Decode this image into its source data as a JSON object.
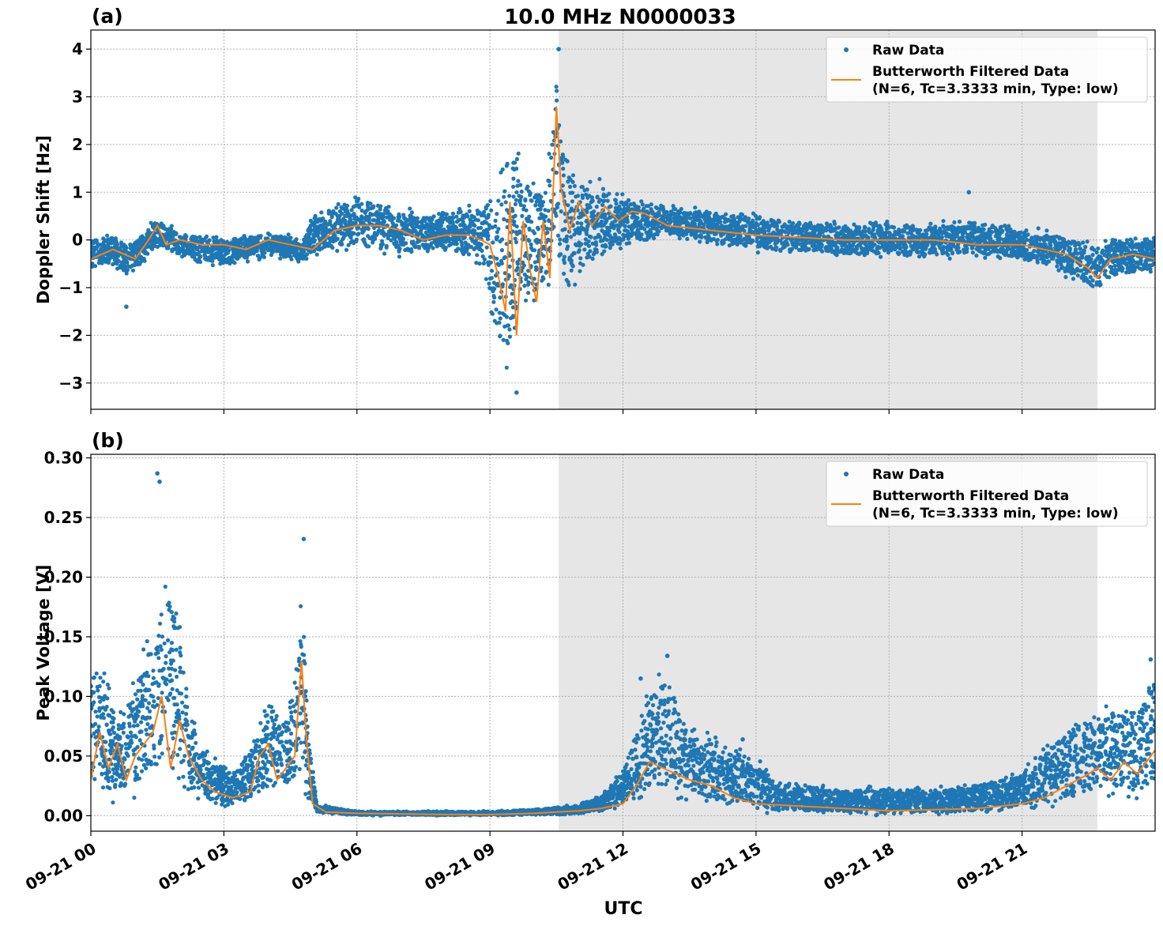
{
  "figure_title": "10.0 MHz N0000033",
  "xlabel": "UTC",
  "colors": {
    "raw": "#1f77b4",
    "filtered": "#ff7f0e",
    "shade": "#e6e6e6",
    "grid": "#b0b0b0"
  },
  "chart_data": [
    {
      "type": "scatter",
      "panel_label": "(a)",
      "ylabel": "Doppler Shift [Hz]",
      "xlim": [
        0,
        24
      ],
      "ylim": [
        -3.55,
        4.4
      ],
      "y_ticks": [
        4,
        3,
        2,
        1,
        0,
        -1,
        -2,
        -3
      ],
      "y_tick_labels": [
        "4",
        "3",
        "2",
        "1",
        "0",
        "−1",
        "−2",
        "−3"
      ],
      "shaded_region_utc_hours": [
        10.55,
        22.7
      ],
      "grid": true,
      "legend_position": "top-right",
      "legend": [
        "Raw Data",
        "Butterworth Filtered Data",
        "(N=6, Tc=3.3333 min, Type: low)"
      ],
      "series": [
        {
          "name": "Raw Data",
          "style": "markers",
          "band": [
            [
              0.0,
              -0.7,
              0.1
            ],
            [
              0.5,
              -0.6,
              0.2
            ],
            [
              0.8,
              -0.8,
              0.0
            ],
            [
              1.0,
              -0.7,
              0.1
            ],
            [
              1.5,
              -0.2,
              0.5
            ],
            [
              2.0,
              -0.4,
              0.2
            ],
            [
              3.0,
              -0.6,
              0.1
            ],
            [
              4.0,
              -0.4,
              0.2
            ],
            [
              4.8,
              -0.5,
              0.1
            ],
            [
              5.0,
              -0.4,
              0.6
            ],
            [
              6.0,
              -0.2,
              1.0
            ],
            [
              7.0,
              -0.4,
              0.7
            ],
            [
              8.0,
              -0.3,
              0.6
            ],
            [
              8.8,
              -0.6,
              0.9
            ],
            [
              9.2,
              -2.9,
              1.5
            ],
            [
              9.4,
              -3.2,
              2.8
            ],
            [
              9.7,
              -1.6,
              2.0
            ],
            [
              10.0,
              -1.7,
              1.4
            ],
            [
              10.3,
              -1.2,
              1.6
            ],
            [
              10.5,
              -0.6,
              4.0
            ],
            [
              10.7,
              -1.3,
              1.9
            ],
            [
              11.0,
              -1.0,
              1.5
            ],
            [
              11.5,
              -0.6,
              1.4
            ],
            [
              12.0,
              -0.2,
              1.0
            ],
            [
              13.0,
              0.0,
              0.8
            ],
            [
              15.0,
              -0.3,
              0.6
            ],
            [
              17.0,
              -0.4,
              0.4
            ],
            [
              19.0,
              -0.4,
              0.4
            ],
            [
              20.0,
              -0.4,
              0.5
            ],
            [
              21.0,
              -0.5,
              0.3
            ],
            [
              22.0,
              -0.8,
              0.2
            ],
            [
              22.7,
              -1.2,
              0.0
            ],
            [
              23.0,
              -0.9,
              0.1
            ],
            [
              24.0,
              -0.7,
              0.1
            ]
          ],
          "outliers": [
            [
              0.8,
              -1.4
            ],
            [
              19.8,
              1.0
            ],
            [
              9.6,
              -3.2
            ],
            [
              10.55,
              4.0
            ]
          ]
        },
        {
          "name": "Butterworth Filtered Data",
          "style": "line",
          "x": [
            0.0,
            0.5,
            1.0,
            1.3,
            1.5,
            1.7,
            2.0,
            2.5,
            3.0,
            3.5,
            4.0,
            4.5,
            5.0,
            5.5,
            6.0,
            6.5,
            7.0,
            7.5,
            8.0,
            8.5,
            8.8,
            9.0,
            9.2,
            9.35,
            9.45,
            9.6,
            9.75,
            9.9,
            10.05,
            10.2,
            10.35,
            10.5,
            10.6,
            10.8,
            11.0,
            11.3,
            11.6,
            11.9,
            12.2,
            12.5,
            13.0,
            14.0,
            15.0,
            16.0,
            17.0,
            18.0,
            19.0,
            20.0,
            21.0,
            22.0,
            22.5,
            22.7,
            23.0,
            23.5,
            24.0
          ],
          "y": [
            -0.4,
            -0.2,
            -0.4,
            0.0,
            0.3,
            -0.1,
            0.0,
            -0.1,
            -0.1,
            -0.2,
            0.0,
            -0.1,
            -0.2,
            0.2,
            0.3,
            0.3,
            0.2,
            0.0,
            0.1,
            0.1,
            0.0,
            -0.1,
            -0.8,
            -1.5,
            0.8,
            -2.0,
            0.4,
            -0.6,
            -1.3,
            0.4,
            -0.8,
            2.8,
            1.1,
            0.2,
            0.8,
            0.3,
            0.7,
            0.4,
            0.6,
            0.55,
            0.3,
            0.2,
            0.1,
            0.05,
            0.0,
            0.0,
            0.0,
            -0.1,
            -0.1,
            -0.3,
            -0.6,
            -0.8,
            -0.4,
            -0.3,
            -0.4
          ]
        }
      ]
    },
    {
      "type": "scatter",
      "panel_label": "(b)",
      "ylabel": "Peak Voltage [V]",
      "xlim": [
        0,
        24
      ],
      "ylim": [
        -0.013,
        0.303
      ],
      "y_ticks": [
        0.3,
        0.25,
        0.2,
        0.15,
        0.1,
        0.05,
        0.0
      ],
      "y_tick_labels": [
        "0.30",
        "0.25",
        "0.20",
        "0.15",
        "0.10",
        "0.05",
        "0.00"
      ],
      "x_ticks": [
        0,
        3,
        6,
        9,
        12,
        15,
        18,
        21
      ],
      "x_tick_labels": [
        "09-21 00",
        "09-21 03",
        "09-21 06",
        "09-21 09",
        "09-21 12",
        "09-21 15",
        "09-21 18",
        "09-21 21"
      ],
      "shaded_region_utc_hours": [
        10.55,
        22.7
      ],
      "grid": true,
      "legend_position": "top-right",
      "legend": [
        "Raw Data",
        "Butterworth Filtered Data",
        "(N=6, Tc=3.3333 min, Type: low)"
      ],
      "series": [
        {
          "name": "Raw Data",
          "style": "markers",
          "band": [
            [
              0.0,
              0.01,
              0.15
            ],
            [
              0.3,
              0.01,
              0.13
            ],
            [
              0.6,
              0.01,
              0.09
            ],
            [
              1.0,
              0.01,
              0.12
            ],
            [
              1.3,
              0.02,
              0.16
            ],
            [
              1.6,
              0.02,
              0.2
            ],
            [
              1.9,
              0.02,
              0.21
            ],
            [
              2.1,
              0.015,
              0.13
            ],
            [
              2.4,
              0.01,
              0.07
            ],
            [
              2.8,
              0.005,
              0.05
            ],
            [
              3.2,
              0.005,
              0.04
            ],
            [
              3.6,
              0.01,
              0.06
            ],
            [
              4.0,
              0.01,
              0.12
            ],
            [
              4.3,
              0.01,
              0.08
            ],
            [
              4.6,
              0.01,
              0.12
            ],
            [
              4.75,
              0.02,
              0.23
            ],
            [
              4.9,
              0.005,
              0.08
            ],
            [
              5.1,
              0.002,
              0.01
            ],
            [
              6.0,
              0.0,
              0.004
            ],
            [
              9.0,
              0.0,
              0.004
            ],
            [
              10.0,
              0.0,
              0.006
            ],
            [
              11.0,
              0.0,
              0.01
            ],
            [
              11.5,
              0.002,
              0.02
            ],
            [
              12.0,
              0.005,
              0.04
            ],
            [
              12.5,
              0.01,
              0.11
            ],
            [
              13.0,
              0.015,
              0.13
            ],
            [
              13.5,
              0.01,
              0.08
            ],
            [
              14.0,
              0.005,
              0.07
            ],
            [
              14.8,
              0.002,
              0.06
            ],
            [
              15.5,
              0.0,
              0.03
            ],
            [
              17.0,
              0.0,
              0.025
            ],
            [
              19.0,
              0.0,
              0.025
            ],
            [
              20.0,
              0.0,
              0.03
            ],
            [
              21.0,
              0.002,
              0.04
            ],
            [
              22.0,
              0.005,
              0.08
            ],
            [
              22.7,
              0.01,
              0.1
            ],
            [
              23.5,
              0.01,
              0.1
            ],
            [
              24.0,
              0.01,
              0.13
            ]
          ],
          "outliers": [
            [
              1.5,
              0.287
            ],
            [
              1.55,
              0.28
            ],
            [
              4.8,
              0.232
            ],
            [
              13.0,
              0.134
            ],
            [
              12.4,
              0.115
            ],
            [
              14.7,
              0.064
            ],
            [
              23.9,
              0.131
            ]
          ]
        },
        {
          "name": "Butterworth Filtered Data",
          "style": "line",
          "x": [
            0.0,
            0.2,
            0.4,
            0.6,
            0.8,
            1.0,
            1.2,
            1.4,
            1.6,
            1.8,
            2.0,
            2.2,
            2.5,
            2.8,
            3.2,
            3.6,
            3.8,
            4.0,
            4.2,
            4.4,
            4.6,
            4.75,
            4.85,
            5.0,
            5.3,
            6.0,
            8.0,
            9.0,
            10.0,
            10.5,
            11.0,
            11.5,
            12.0,
            12.3,
            12.6,
            12.9,
            13.2,
            13.5,
            14.0,
            14.5,
            15.0,
            16.0,
            17.0,
            18.0,
            19.0,
            20.0,
            21.0,
            21.5,
            22.0,
            22.5,
            22.7,
            23.0,
            23.3,
            23.6,
            24.0
          ],
          "y": [
            0.03,
            0.07,
            0.04,
            0.06,
            0.03,
            0.05,
            0.06,
            0.07,
            0.1,
            0.04,
            0.08,
            0.05,
            0.03,
            0.02,
            0.015,
            0.02,
            0.05,
            0.06,
            0.03,
            0.04,
            0.05,
            0.13,
            0.07,
            0.01,
            0.003,
            0.002,
            0.001,
            0.001,
            0.002,
            0.003,
            0.004,
            0.006,
            0.01,
            0.025,
            0.045,
            0.04,
            0.035,
            0.03,
            0.025,
            0.015,
            0.01,
            0.008,
            0.006,
            0.004,
            0.005,
            0.006,
            0.01,
            0.015,
            0.025,
            0.035,
            0.04,
            0.03,
            0.045,
            0.035,
            0.055
          ]
        }
      ]
    }
  ]
}
